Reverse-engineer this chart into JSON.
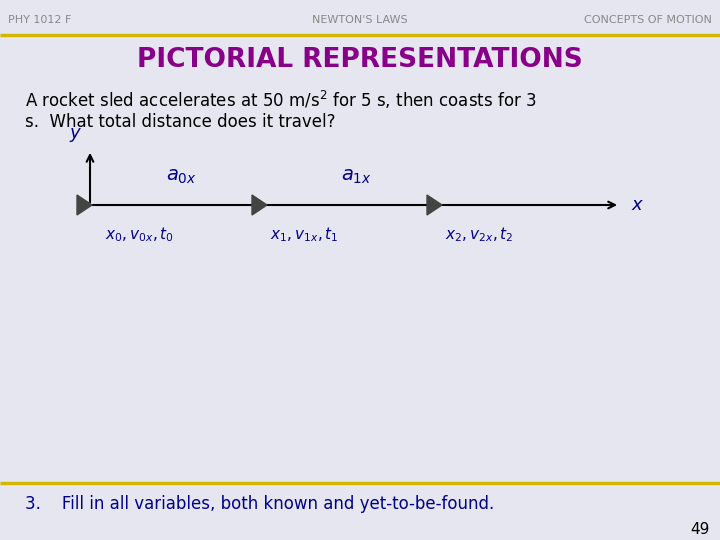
{
  "bg_color": "#e6e6f0",
  "header_left": "PHY 1012 F",
  "header_center": "NEWTON'S LAWS",
  "header_right": "CONCEPTS OF MOTION",
  "header_color": "#888888",
  "gold_line_color": "#d4b800",
  "title": "PICTORIAL REPRESENTATIONS",
  "title_color": "#880088",
  "body_color": "#000000",
  "axis_color": "#000000",
  "label_color": "#00008b",
  "triangle_color": "#444444",
  "label_a0x": "$a_{0x}$",
  "label_a1x": "$a_{1x}$",
  "label_x0": "$x_0, v_{0x}, t_0$",
  "label_x1": "$x_1, v_{1x}, t_1$",
  "label_x2": "$x_2, v_{2x}, t_2$",
  "label_x": "$x$",
  "label_y": "$y$",
  "note": "3.    Fill in all variables, both known and yet-to-be-found.",
  "note_color": "#00008b",
  "page_number": "49",
  "page_color": "#000000"
}
